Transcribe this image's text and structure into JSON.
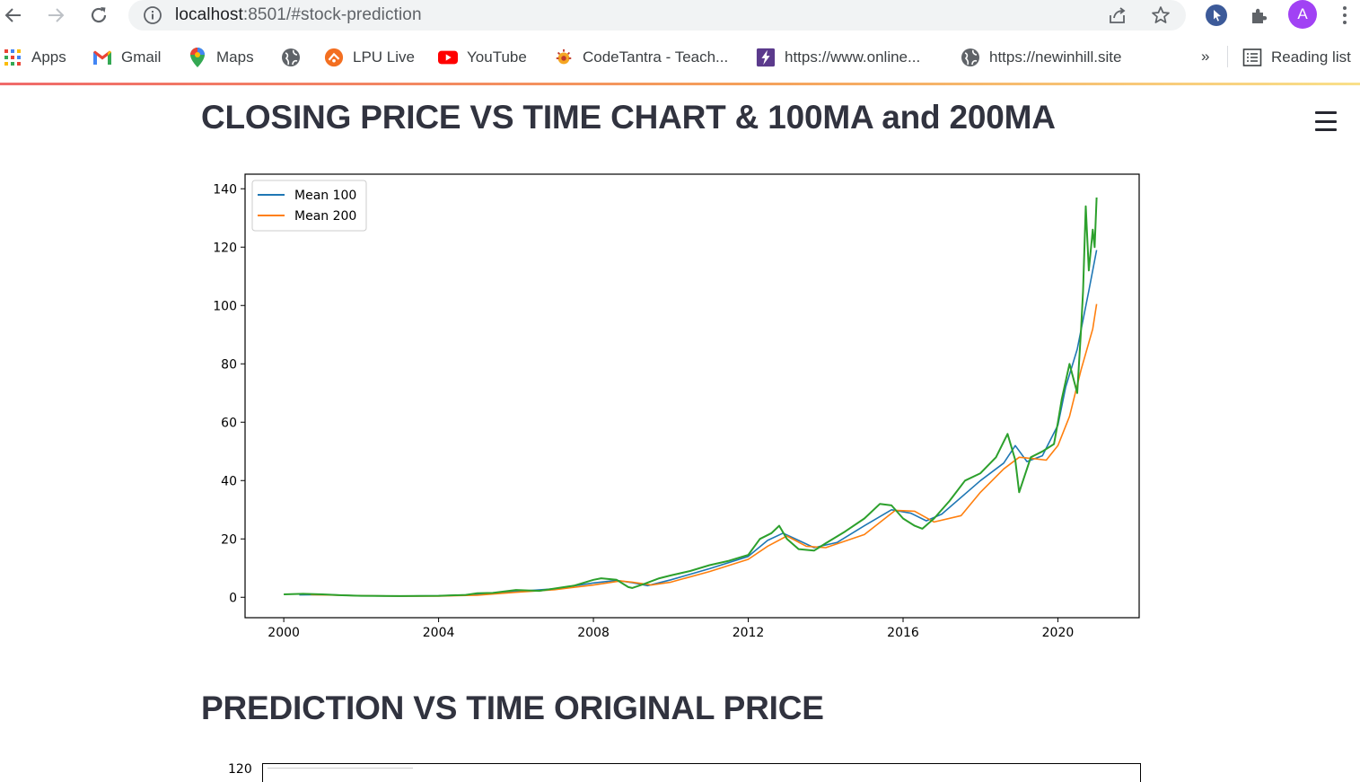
{
  "browser": {
    "url_host": "localhost",
    "url_rest": ":8501/#stock-prediction",
    "avatar_letter": "A",
    "bookmarks": [
      {
        "label": "Apps",
        "icon": "apps-grid-icon"
      },
      {
        "label": "Gmail",
        "icon": "gmail-icon"
      },
      {
        "label": "Maps",
        "icon": "maps-pin-icon"
      },
      {
        "label": "",
        "icon": "globe-icon"
      },
      {
        "label": "LPU Live",
        "icon": "lpu-live-icon"
      },
      {
        "label": "YouTube",
        "icon": "youtube-icon"
      },
      {
        "label": "CodeTantra - Teach...",
        "icon": "codetantra-icon"
      },
      {
        "label": "https://www.online...",
        "icon": "lightning-icon"
      },
      {
        "label": "https://newinhill.site",
        "icon": "globe-icon"
      }
    ],
    "more_label": "»",
    "reading_list_label": "Reading list"
  },
  "page": {
    "heading1": "CLOSING PRICE VS TIME CHART & 100MA and 200MA",
    "heading2": "PREDICTION VS TIME ORIGINAL PRICE"
  },
  "chart_data": [
    {
      "type": "line",
      "title": "",
      "xlabel": "",
      "ylabel": "",
      "xlim": [
        1999.0,
        2022.1
      ],
      "ylim": [
        -7,
        145
      ],
      "x_ticks": [
        2000,
        2004,
        2008,
        2012,
        2016,
        2020
      ],
      "y_ticks": [
        0,
        20,
        40,
        60,
        80,
        100,
        120,
        140
      ],
      "grid": false,
      "legend_position": "top-left",
      "series": [
        {
          "name": "Mean 100",
          "color": "#1f77b4",
          "x": [
            2000.4,
            2001.0,
            2002.0,
            2003.0,
            2004.0,
            2005.0,
            2006.0,
            2007.0,
            2008.0,
            2008.6,
            2009.0,
            2009.4,
            2010.0,
            2011.0,
            2012.0,
            2012.5,
            2012.9,
            2013.3,
            2013.7,
            2014.3,
            2015.0,
            2015.7,
            2016.2,
            2016.6,
            2017.0,
            2018.0,
            2018.6,
            2018.9,
            2019.2,
            2019.6,
            2020.0,
            2020.2,
            2020.5,
            2020.8,
            2021.0
          ],
          "y": [
            0.8,
            0.9,
            0.5,
            0.4,
            0.5,
            0.9,
            2.0,
            2.9,
            4.9,
            5.8,
            5.0,
            4.0,
            6.0,
            9.8,
            14.0,
            19.5,
            22.0,
            19.5,
            17.0,
            18.8,
            24.5,
            30.0,
            28.8,
            26.2,
            28.5,
            40.0,
            46.0,
            52.0,
            46.5,
            48.5,
            59.0,
            72.0,
            85.0,
            105.0,
            119.0
          ]
        },
        {
          "name": "Mean 200",
          "color": "#ff7f0e",
          "x": [
            2000.7,
            2001.0,
            2002.0,
            2003.0,
            2004.0,
            2005.0,
            2006.0,
            2007.0,
            2008.0,
            2008.7,
            2009.0,
            2009.5,
            2010.0,
            2011.0,
            2012.0,
            2012.5,
            2013.0,
            2013.5,
            2014.0,
            2015.0,
            2015.8,
            2016.3,
            2016.8,
            2017.5,
            2018.0,
            2018.6,
            2019.0,
            2019.4,
            2019.7,
            2020.0,
            2020.3,
            2020.6,
            2020.9,
            2021.0
          ],
          "y": [
            0.9,
            0.8,
            0.5,
            0.4,
            0.4,
            0.7,
            1.7,
            2.6,
            4.2,
            5.6,
            5.2,
            4.2,
            5.2,
            8.8,
            13.0,
            17.5,
            21.0,
            17.5,
            17.0,
            21.5,
            29.8,
            29.5,
            25.8,
            28.0,
            36.0,
            44.0,
            48.0,
            47.5,
            47.0,
            52.0,
            62.0,
            78.0,
            92.0,
            100.5
          ]
        },
        {
          "name": "",
          "color": "#2ca02c",
          "x": [
            2000.0,
            2000.5,
            2001.0,
            2001.5,
            2002.0,
            2003.0,
            2004.0,
            2004.7,
            2005.0,
            2005.4,
            2006.0,
            2006.6,
            2007.0,
            2007.5,
            2008.0,
            2008.2,
            2008.6,
            2008.9,
            2009.0,
            2009.3,
            2009.7,
            2010.0,
            2010.5,
            2011.0,
            2011.5,
            2012.0,
            2012.3,
            2012.6,
            2012.8,
            2013.0,
            2013.3,
            2013.7,
            2014.0,
            2014.5,
            2015.0,
            2015.4,
            2015.7,
            2016.0,
            2016.3,
            2016.5,
            2016.8,
            2017.2,
            2017.6,
            2018.0,
            2018.4,
            2018.7,
            2018.9,
            2019.0,
            2019.3,
            2019.6,
            2019.9,
            2020.0,
            2020.1,
            2020.3,
            2020.5,
            2020.6,
            2020.65,
            2020.72,
            2020.8,
            2020.9,
            2020.95,
            2021.0
          ],
          "y": [
            1.0,
            1.2,
            1.0,
            0.7,
            0.5,
            0.4,
            0.5,
            0.8,
            1.4,
            1.5,
            2.5,
            2.2,
            3.0,
            4.0,
            6.0,
            6.5,
            6.0,
            3.5,
            3.2,
            4.5,
            6.5,
            7.5,
            9.0,
            11.0,
            12.5,
            14.5,
            20.0,
            22.0,
            24.5,
            20.0,
            16.5,
            16.0,
            18.5,
            22.5,
            27.0,
            32.0,
            31.5,
            27.0,
            24.5,
            23.5,
            27.0,
            33.0,
            40.0,
            42.5,
            48.0,
            56.0,
            47.0,
            36.0,
            48.0,
            50.0,
            52.5,
            60.0,
            68.0,
            80.0,
            70.0,
            92.0,
            105.0,
            134.0,
            112.0,
            126.0,
            120.0,
            137.0
          ]
        }
      ]
    }
  ],
  "chart2": {
    "first_tick": "120"
  }
}
